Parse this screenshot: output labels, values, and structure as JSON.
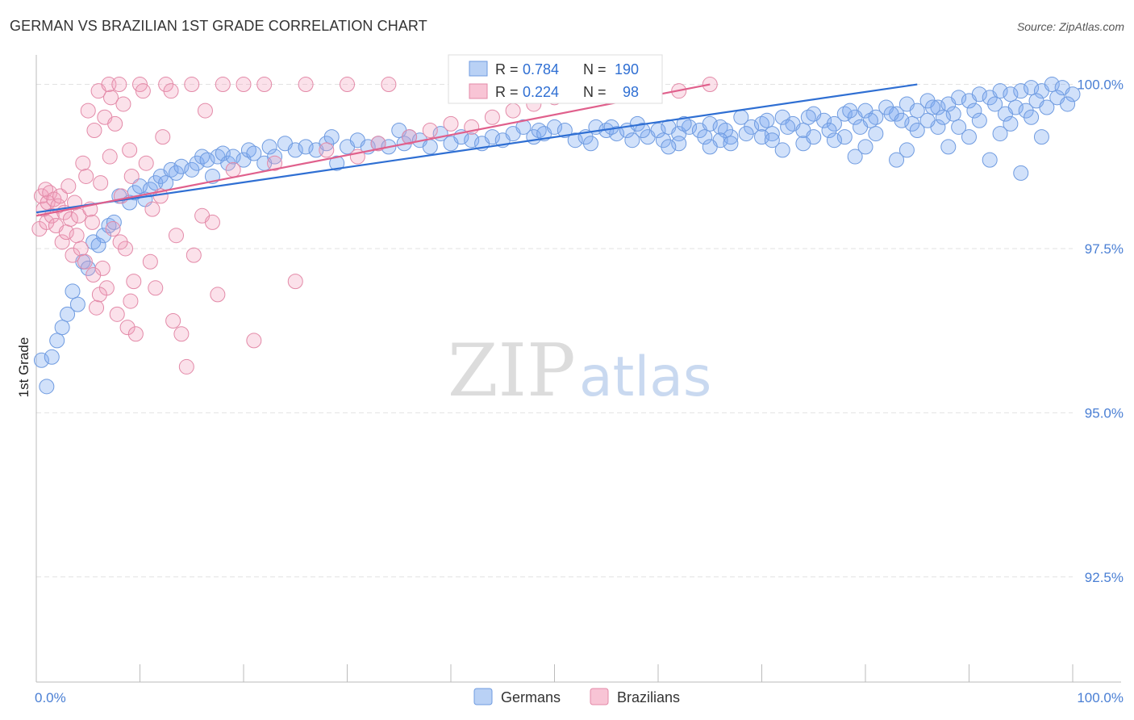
{
  "title": "GERMAN VS BRAZILIAN 1ST GRADE CORRELATION CHART",
  "source": "Source: ZipAtlas.com",
  "watermark": {
    "left": "ZIP",
    "right": "atlas"
  },
  "chart_data": {
    "type": "scatter",
    "ylabel": "1st Grade",
    "xlabel": "",
    "xlim": [
      0,
      100
    ],
    "ylim": [
      90.9,
      100.4
    ],
    "x_tick_labels": [
      "0.0%",
      "100.0%"
    ],
    "y_ticks": [
      {
        "value": 100.0,
        "label": "100.0%"
      },
      {
        "value": 97.5,
        "label": "97.5%"
      },
      {
        "value": 95.0,
        "label": "95.0%"
      },
      {
        "value": 92.5,
        "label": "92.5%"
      }
    ],
    "legend_stats": [
      {
        "series": "Germans",
        "r_label": "R =",
        "r": "0.784",
        "n_label": "N =",
        "n": "190"
      },
      {
        "series": "Brazilians",
        "r_label": "R =",
        "r": "0.224",
        "n_label": "N =",
        "n": "98"
      }
    ],
    "series": [
      {
        "name": "Germans",
        "color": "#7aaaf0",
        "line_color": "#2f6fd3",
        "trend": {
          "x0": 0,
          "y0": 98.05,
          "x1": 85,
          "y1": 100.0
        },
        "points": [
          [
            0.5,
            95.8
          ],
          [
            1,
            95.4
          ],
          [
            1.5,
            95.85
          ],
          [
            2,
            96.1
          ],
          [
            2.5,
            96.3
          ],
          [
            3,
            96.5
          ],
          [
            3.5,
            96.85
          ],
          [
            4,
            96.65
          ],
          [
            4.5,
            97.3
          ],
          [
            5,
            97.2
          ],
          [
            5.5,
            97.6
          ],
          [
            6,
            97.55
          ],
          [
            6.5,
            97.7
          ],
          [
            7,
            97.85
          ],
          [
            7.5,
            97.9
          ],
          [
            8,
            98.3
          ],
          [
            9,
            98.2
          ],
          [
            9.5,
            98.35
          ],
          [
            10,
            98.45
          ],
          [
            10.5,
            98.25
          ],
          [
            11,
            98.4
          ],
          [
            11.5,
            98.5
          ],
          [
            12,
            98.6
          ],
          [
            12.5,
            98.5
          ],
          [
            13,
            98.7
          ],
          [
            13.5,
            98.65
          ],
          [
            14,
            98.75
          ],
          [
            15,
            98.7
          ],
          [
            15.5,
            98.8
          ],
          [
            16,
            98.9
          ],
          [
            16.5,
            98.85
          ],
          [
            17,
            98.6
          ],
          [
            17.5,
            98.9
          ],
          [
            18,
            98.95
          ],
          [
            18.5,
            98.8
          ],
          [
            19,
            98.9
          ],
          [
            20,
            98.85
          ],
          [
            20.5,
            99.0
          ],
          [
            21,
            98.95
          ],
          [
            22,
            98.8
          ],
          [
            22.5,
            99.05
          ],
          [
            23,
            98.9
          ],
          [
            24,
            99.1
          ],
          [
            25,
            99.0
          ],
          [
            26,
            99.05
          ],
          [
            27,
            99.0
          ],
          [
            28,
            99.1
          ],
          [
            28.5,
            99.2
          ],
          [
            29,
            98.8
          ],
          [
            30,
            99.05
          ],
          [
            31,
            99.15
          ],
          [
            32,
            99.05
          ],
          [
            33,
            99.1
          ],
          [
            34,
            99.05
          ],
          [
            35,
            99.3
          ],
          [
            35.5,
            99.1
          ],
          [
            36,
            99.2
          ],
          [
            37,
            99.15
          ],
          [
            38,
            99.05
          ],
          [
            39,
            99.25
          ],
          [
            40,
            99.1
          ],
          [
            41,
            99.2
          ],
          [
            42,
            99.15
          ],
          [
            43,
            99.1
          ],
          [
            44,
            99.2
          ],
          [
            45,
            99.15
          ],
          [
            46,
            99.25
          ],
          [
            47,
            99.35
          ],
          [
            48,
            99.2
          ],
          [
            48.5,
            99.3
          ],
          [
            49,
            99.25
          ],
          [
            50,
            99.35
          ],
          [
            51,
            99.3
          ],
          [
            52,
            99.15
          ],
          [
            53,
            99.2
          ],
          [
            53.5,
            99.1
          ],
          [
            54,
            99.35
          ],
          [
            55,
            99.3
          ],
          [
            56,
            99.25
          ],
          [
            57,
            99.3
          ],
          [
            58,
            99.4
          ],
          [
            59,
            99.2
          ],
          [
            60,
            99.3
          ],
          [
            61,
            99.35
          ],
          [
            62,
            99.25
          ],
          [
            63,
            99.35
          ],
          [
            64,
            99.3
          ],
          [
            65,
            99.4
          ],
          [
            66,
            99.35
          ],
          [
            67,
            99.2
          ],
          [
            68,
            99.5
          ],
          [
            69,
            99.35
          ],
          [
            70,
            99.4
          ],
          [
            71,
            99.25
          ],
          [
            72,
            99.5
          ],
          [
            73,
            99.4
          ],
          [
            74,
            99.3
          ],
          [
            75,
            99.55
          ],
          [
            76,
            99.45
          ],
          [
            77,
            99.4
          ],
          [
            78,
            99.55
          ],
          [
            79,
            99.5
          ],
          [
            80,
            99.6
          ],
          [
            81,
            99.5
          ],
          [
            82,
            99.65
          ],
          [
            83,
            99.55
          ],
          [
            84,
            99.7
          ],
          [
            85,
            99.6
          ],
          [
            86,
            99.75
          ],
          [
            87,
            99.65
          ],
          [
            88,
            99.7
          ],
          [
            89,
            99.8
          ],
          [
            90,
            99.75
          ],
          [
            91,
            99.85
          ],
          [
            92,
            99.8
          ],
          [
            93,
            99.9
          ],
          [
            94,
            99.85
          ],
          [
            95,
            99.9
          ],
          [
            96,
            99.95
          ],
          [
            97,
            99.9
          ],
          [
            98,
            100.0
          ],
          [
            99,
            99.95
          ],
          [
            100,
            99.85
          ],
          [
            55.5,
            99.35
          ],
          [
            58.5,
            99.3
          ],
          [
            60.5,
            99.15
          ],
          [
            62.5,
            99.4
          ],
          [
            64.5,
            99.2
          ],
          [
            66.5,
            99.3
          ],
          [
            68.5,
            99.25
          ],
          [
            70.5,
            99.45
          ],
          [
            72.5,
            99.35
          ],
          [
            74.5,
            99.5
          ],
          [
            76.5,
            99.3
          ],
          [
            78.5,
            99.6
          ],
          [
            80.5,
            99.45
          ],
          [
            82.5,
            99.55
          ],
          [
            84.5,
            99.4
          ],
          [
            86.5,
            99.65
          ],
          [
            88.5,
            99.55
          ],
          [
            90.5,
            99.6
          ],
          [
            92.5,
            99.7
          ],
          [
            94.5,
            99.65
          ],
          [
            96.5,
            99.75
          ],
          [
            98.5,
            99.8
          ],
          [
            57.5,
            99.15
          ],
          [
            62,
            99.1
          ],
          [
            66,
            99.15
          ],
          [
            70,
            99.2
          ],
          [
            74,
            99.1
          ],
          [
            78,
            99.2
          ],
          [
            81,
            99.25
          ],
          [
            84,
            99.0
          ],
          [
            87,
            99.35
          ],
          [
            90,
            99.2
          ],
          [
            93,
            99.25
          ],
          [
            65,
            99.05
          ],
          [
            72,
            99.0
          ],
          [
            79,
            98.9
          ],
          [
            83,
            98.85
          ],
          [
            88,
            99.05
          ],
          [
            92,
            98.85
          ],
          [
            95,
            98.65
          ],
          [
            97,
            99.2
          ],
          [
            86,
            99.45
          ],
          [
            89,
            99.35
          ],
          [
            91,
            99.45
          ],
          [
            93.5,
            99.55
          ],
          [
            95.5,
            99.6
          ],
          [
            97.5,
            99.65
          ],
          [
            99.5,
            99.7
          ],
          [
            77,
            99.15
          ],
          [
            80,
            99.05
          ],
          [
            85,
            99.3
          ],
          [
            94,
            99.4
          ],
          [
            96,
            99.5
          ],
          [
            61,
            99.05
          ],
          [
            67,
            99.1
          ],
          [
            71,
            99.15
          ],
          [
            75,
            99.2
          ],
          [
            79.5,
            99.35
          ],
          [
            83.5,
            99.45
          ],
          [
            87.5,
            99.5
          ]
        ]
      },
      {
        "name": "Brazilians",
        "color": "#f29bb8",
        "line_color": "#e0608c",
        "trend": {
          "x0": 0,
          "y0": 98.0,
          "x1": 65,
          "y1": 100.0
        },
        "points": [
          [
            0.3,
            97.8
          ],
          [
            0.5,
            98.3
          ],
          [
            0.7,
            98.1
          ],
          [
            0.9,
            98.4
          ],
          [
            1.0,
            97.9
          ],
          [
            1.1,
            98.2
          ],
          [
            1.3,
            98.35
          ],
          [
            1.5,
            98.0
          ],
          [
            1.7,
            98.25
          ],
          [
            1.9,
            97.85
          ],
          [
            2.1,
            98.15
          ],
          [
            2.3,
            98.3
          ],
          [
            2.5,
            97.6
          ],
          [
            2.7,
            98.05
          ],
          [
            2.9,
            97.75
          ],
          [
            3.1,
            98.45
          ],
          [
            3.3,
            97.95
          ],
          [
            3.5,
            97.4
          ],
          [
            3.7,
            98.2
          ],
          [
            3.9,
            97.7
          ],
          [
            4.1,
            98.0
          ],
          [
            4.3,
            97.5
          ],
          [
            4.5,
            98.8
          ],
          [
            4.7,
            97.3
          ],
          [
            5.0,
            99.6
          ],
          [
            5.2,
            98.1
          ],
          [
            5.4,
            97.9
          ],
          [
            5.6,
            99.3
          ],
          [
            5.8,
            96.6
          ],
          [
            6.0,
            99.9
          ],
          [
            6.2,
            98.5
          ],
          [
            6.4,
            97.2
          ],
          [
            6.6,
            99.5
          ],
          [
            6.8,
            96.9
          ],
          [
            7.0,
            100.0
          ],
          [
            7.2,
            99.8
          ],
          [
            7.4,
            97.8
          ],
          [
            7.6,
            99.4
          ],
          [
            7.8,
            96.5
          ],
          [
            8.0,
            100.0
          ],
          [
            8.2,
            98.3
          ],
          [
            8.4,
            99.7
          ],
          [
            8.6,
            97.5
          ],
          [
            8.8,
            96.3
          ],
          [
            9.0,
            99.0
          ],
          [
            9.2,
            98.6
          ],
          [
            9.4,
            97.0
          ],
          [
            9.6,
            96.2
          ],
          [
            10.0,
            100.0
          ],
          [
            10.3,
            99.9
          ],
          [
            10.6,
            98.8
          ],
          [
            11.0,
            97.3
          ],
          [
            11.5,
            96.9
          ],
          [
            12.0,
            98.3
          ],
          [
            12.5,
            100.0
          ],
          [
            13.0,
            99.9
          ],
          [
            13.5,
            97.7
          ],
          [
            14.0,
            96.2
          ],
          [
            14.5,
            95.7
          ],
          [
            15.0,
            100.0
          ],
          [
            16.0,
            98.0
          ],
          [
            17.0,
            97.9
          ],
          [
            18.0,
            100.0
          ],
          [
            19.0,
            98.7
          ],
          [
            20.0,
            100.0
          ],
          [
            21.0,
            96.1
          ],
          [
            22.0,
            100.0
          ],
          [
            23.0,
            98.8
          ],
          [
            25.0,
            97.0
          ],
          [
            26.0,
            100.0
          ],
          [
            28.0,
            99.0
          ],
          [
            30.0,
            100.0
          ],
          [
            31.0,
            98.9
          ],
          [
            33.0,
            99.1
          ],
          [
            34.0,
            100.0
          ],
          [
            36.0,
            99.2
          ],
          [
            38.0,
            99.3
          ],
          [
            40.0,
            99.4
          ],
          [
            42.0,
            99.35
          ],
          [
            44.0,
            99.5
          ],
          [
            46.0,
            99.6
          ],
          [
            48.0,
            99.7
          ],
          [
            50.0,
            99.8
          ],
          [
            52.0,
            99.85
          ],
          [
            54.0,
            99.9
          ],
          [
            56.0,
            99.95
          ],
          [
            58.0,
            100.0
          ],
          [
            62.0,
            99.9
          ],
          [
            65.0,
            100.0
          ],
          [
            4.8,
            98.6
          ],
          [
            5.5,
            97.1
          ],
          [
            6.1,
            96.8
          ],
          [
            7.1,
            98.9
          ],
          [
            8.1,
            97.6
          ],
          [
            9.1,
            96.7
          ],
          [
            11.2,
            98.1
          ],
          [
            12.2,
            99.2
          ],
          [
            13.2,
            96.4
          ],
          [
            15.2,
            97.4
          ],
          [
            16.3,
            99.6
          ],
          [
            17.5,
            96.8
          ]
        ]
      }
    ]
  },
  "legend_bottom": [
    "Germans",
    "Brazilians"
  ]
}
